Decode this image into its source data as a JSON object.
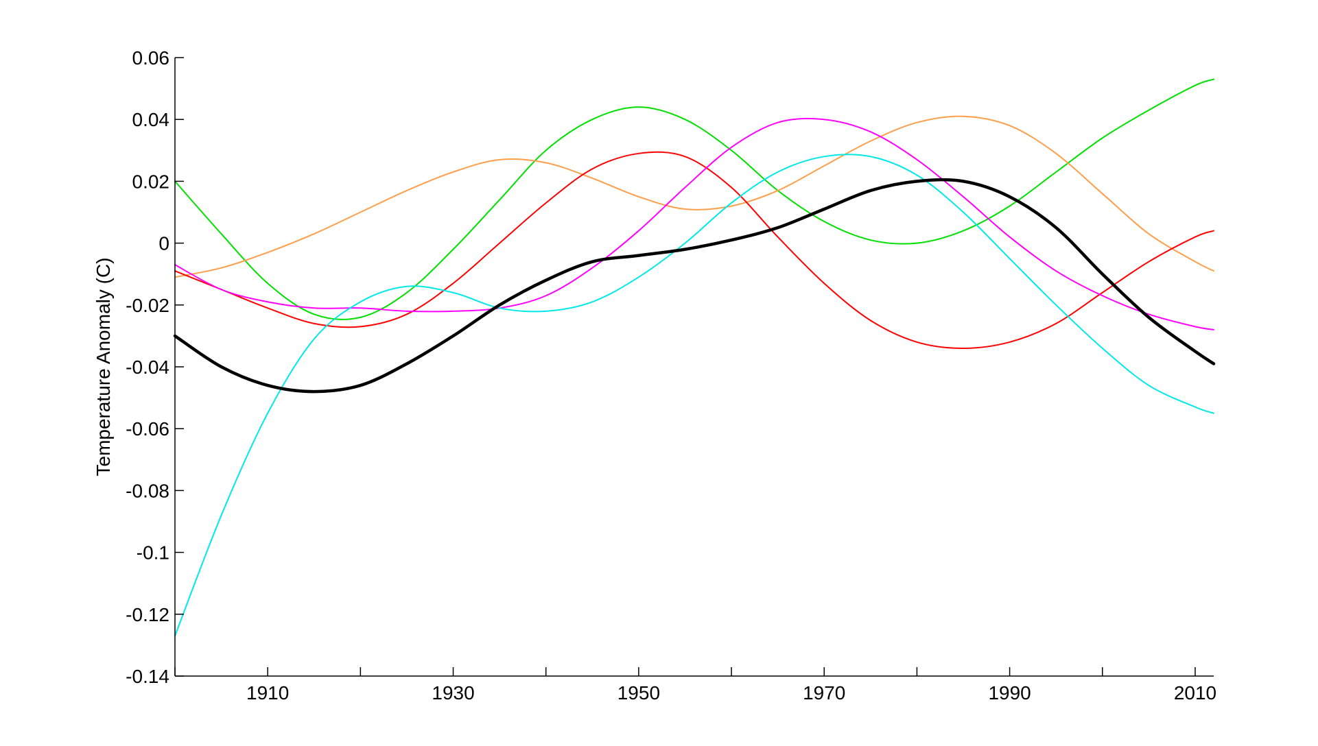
{
  "chart_data": {
    "type": "line",
    "title": "",
    "xlabel": "",
    "ylabel": "Temperature Anomaly (C)",
    "xlim": [
      1900,
      2012
    ],
    "ylim": [
      -0.14,
      0.06
    ],
    "grid": false,
    "legend": "none",
    "xticks": [
      1900,
      1910,
      1920,
      1930,
      1940,
      1950,
      1960,
      1970,
      1980,
      1990,
      2000,
      2010
    ],
    "xtick_labels": [
      "1910",
      "1930",
      "1950",
      "1970",
      "1990",
      "2010"
    ],
    "xtick_label_values": [
      1910,
      1930,
      1950,
      1970,
      1990,
      2010
    ],
    "yticks": [
      0.06,
      0.04,
      0.02,
      0,
      -0.02,
      -0.04,
      -0.06,
      -0.08,
      -0.1,
      -0.12,
      -0.14
    ],
    "ytick_labels": [
      "0.06",
      "0.04",
      "0.02",
      "0",
      "-0.02",
      "-0.04",
      "-0.06",
      "-0.08",
      "-0.1",
      "-0.12",
      "-0.14"
    ],
    "x": [
      1900,
      1905,
      1910,
      1915,
      1920,
      1925,
      1930,
      1935,
      1940,
      1945,
      1950,
      1955,
      1960,
      1965,
      1970,
      1975,
      1980,
      1985,
      1990,
      1995,
      2000,
      2005,
      2010,
      2012
    ],
    "series": [
      {
        "color": "#00e000",
        "width": 2,
        "values": [
          0.02,
          0.003,
          -0.013,
          -0.023,
          -0.024,
          -0.016,
          -0.002,
          0.014,
          0.03,
          0.04,
          0.044,
          0.04,
          0.03,
          0.017,
          0.007,
          0.001,
          0.0,
          0.004,
          0.012,
          0.023,
          0.034,
          0.043,
          0.051,
          0.053
        ]
      },
      {
        "color": "#ff9e4a",
        "width": 2,
        "values": [
          -0.011,
          -0.008,
          -0.003,
          0.003,
          0.01,
          0.017,
          0.023,
          0.027,
          0.026,
          0.021,
          0.015,
          0.011,
          0.012,
          0.017,
          0.025,
          0.033,
          0.039,
          0.041,
          0.038,
          0.029,
          0.016,
          0.003,
          -0.006,
          -0.009
        ]
      },
      {
        "color": "#ff0000",
        "width": 2,
        "values": [
          -0.009,
          -0.015,
          -0.021,
          -0.026,
          -0.027,
          -0.023,
          -0.013,
          0.0,
          0.013,
          0.024,
          0.029,
          0.028,
          0.018,
          0.002,
          -0.013,
          -0.025,
          -0.032,
          -0.034,
          -0.032,
          -0.026,
          -0.016,
          -0.006,
          0.002,
          0.004
        ]
      },
      {
        "color": "#ff00ff",
        "width": 2,
        "values": [
          -0.007,
          -0.015,
          -0.019,
          -0.021,
          -0.021,
          -0.022,
          -0.022,
          -0.021,
          -0.017,
          -0.008,
          0.004,
          0.018,
          0.031,
          0.039,
          0.04,
          0.036,
          0.027,
          0.015,
          0.002,
          -0.009,
          -0.017,
          -0.023,
          -0.027,
          -0.028
        ]
      },
      {
        "color": "#00e8e8",
        "width": 2,
        "values": [
          -0.127,
          -0.088,
          -0.055,
          -0.031,
          -0.019,
          -0.014,
          -0.016,
          -0.021,
          -0.022,
          -0.019,
          -0.011,
          0.0,
          0.013,
          0.023,
          0.028,
          0.028,
          0.022,
          0.01,
          -0.005,
          -0.02,
          -0.034,
          -0.046,
          -0.053,
          -0.055
        ]
      },
      {
        "color": "#000000",
        "width": 4.5,
        "values": [
          -0.03,
          -0.04,
          -0.046,
          -0.048,
          -0.046,
          -0.039,
          -0.03,
          -0.02,
          -0.012,
          -0.006,
          -0.004,
          -0.002,
          0.001,
          0.005,
          0.011,
          0.017,
          0.02,
          0.02,
          0.015,
          0.005,
          -0.01,
          -0.024,
          -0.035,
          -0.039
        ]
      }
    ]
  }
}
